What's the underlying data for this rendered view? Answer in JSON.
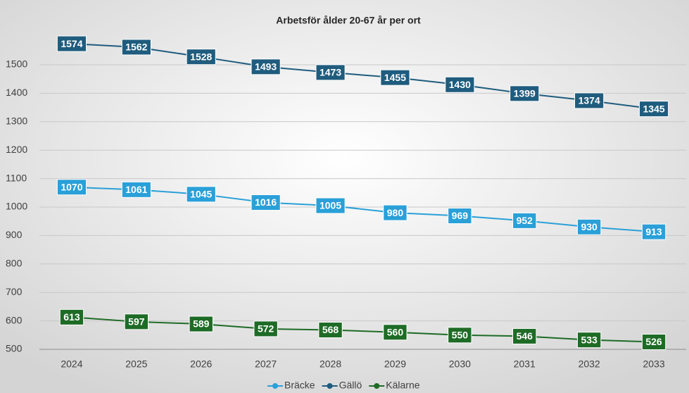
{
  "chart_data": {
    "type": "line",
    "title": "Arbetsför ålder 20-67 år per ort",
    "categories": [
      "2024",
      "2025",
      "2026",
      "2027",
      "2028",
      "2029",
      "2030",
      "2031",
      "2032",
      "2033"
    ],
    "series": [
      {
        "name": "Bräcke",
        "color": "#2aa0d8",
        "values": [
          1070,
          1061,
          1045,
          1016,
          1005,
          980,
          969,
          952,
          930,
          913
        ]
      },
      {
        "name": "Gällö",
        "color": "#1f5c7e",
        "values": [
          1574,
          1562,
          1528,
          1493,
          1473,
          1455,
          1430,
          1399,
          1374,
          1345
        ]
      },
      {
        "name": "Kälarne",
        "color": "#1e6b26",
        "values": [
          613,
          597,
          589,
          572,
          568,
          560,
          550,
          546,
          533,
          526
        ]
      }
    ],
    "ylim": [
      500,
      1600
    ],
    "yticks": [
      500,
      600,
      700,
      800,
      900,
      1000,
      1100,
      1200,
      1300,
      1400,
      1500
    ],
    "grid": true,
    "legend": "bottom"
  }
}
